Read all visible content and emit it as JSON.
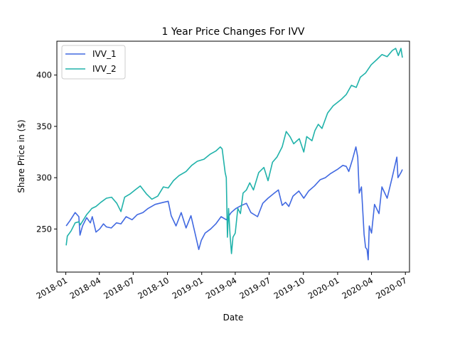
{
  "chart_data": {
    "type": "line",
    "title": "1 Year Price Changes For IVV",
    "xlabel": "Date",
    "ylabel": "Share Price in ($)",
    "xlim": [
      "2017-12-08",
      "2020-07-12"
    ],
    "ylim": [
      208,
      433
    ],
    "x_ticks": [
      "2018-01",
      "2018-04",
      "2018-07",
      "2018-10",
      "2019-01",
      "2019-04",
      "2019-07",
      "2019-10",
      "2020-01",
      "2020-04",
      "2020-07"
    ],
    "y_ticks": [
      250,
      300,
      350,
      400
    ],
    "legend_position": "top-left",
    "grid": false,
    "series": [
      {
        "name": "IVV_1",
        "color": "#4169e1",
        "points": [
          [
            "2018-01-02",
            253
          ],
          [
            "2018-01-12",
            258
          ],
          [
            "2018-01-26",
            266
          ],
          [
            "2018-02-05",
            262
          ],
          [
            "2018-02-08",
            244
          ],
          [
            "2018-02-15",
            253
          ],
          [
            "2018-02-26",
            261
          ],
          [
            "2018-03-08",
            256
          ],
          [
            "2018-03-13",
            262
          ],
          [
            "2018-03-23",
            247
          ],
          [
            "2018-04-02",
            250
          ],
          [
            "2018-04-12",
            255
          ],
          [
            "2018-04-20",
            252
          ],
          [
            "2018-05-03",
            251
          ],
          [
            "2018-05-17",
            256
          ],
          [
            "2018-05-29",
            255
          ],
          [
            "2018-06-12",
            262
          ],
          [
            "2018-06-28",
            259
          ],
          [
            "2018-07-12",
            264
          ],
          [
            "2018-07-27",
            266
          ],
          [
            "2018-08-10",
            270
          ],
          [
            "2018-08-29",
            274
          ],
          [
            "2018-09-20",
            276
          ],
          [
            "2018-10-03",
            277
          ],
          [
            "2018-10-11",
            263
          ],
          [
            "2018-10-24",
            253
          ],
          [
            "2018-11-07",
            266
          ],
          [
            "2018-11-20",
            251
          ],
          [
            "2018-12-03",
            263
          ],
          [
            "2018-12-14",
            246
          ],
          [
            "2018-12-24",
            230
          ],
          [
            "2018-12-31",
            239
          ],
          [
            "2019-01-10",
            246
          ],
          [
            "2019-01-25",
            250
          ],
          [
            "2019-02-08",
            255
          ],
          [
            "2019-02-22",
            262
          ],
          [
            "2019-03-08",
            259
          ],
          [
            "2019-03-21",
            266
          ],
          [
            "2019-04-03",
            270
          ],
          [
            "2019-04-18",
            273
          ],
          [
            "2019-05-01",
            275
          ],
          [
            "2019-05-13",
            266
          ],
          [
            "2019-05-31",
            262
          ],
          [
            "2019-06-14",
            275
          ],
          [
            "2019-06-28",
            280
          ],
          [
            "2019-07-15",
            285
          ],
          [
            "2019-07-26",
            288
          ],
          [
            "2019-08-05",
            273
          ],
          [
            "2019-08-14",
            276
          ],
          [
            "2019-08-23",
            272
          ],
          [
            "2019-09-03",
            282
          ],
          [
            "2019-09-19",
            287
          ],
          [
            "2019-10-02",
            280
          ],
          [
            "2019-10-15",
            287
          ],
          [
            "2019-10-31",
            292
          ],
          [
            "2019-11-15",
            298
          ],
          [
            "2019-11-29",
            300
          ],
          [
            "2019-12-13",
            304
          ],
          [
            "2019-12-31",
            308
          ],
          [
            "2020-01-15",
            312
          ],
          [
            "2020-01-24",
            311
          ],
          [
            "2020-01-31",
            306
          ],
          [
            "2020-02-10",
            318
          ],
          [
            "2020-02-19",
            330
          ],
          [
            "2020-02-24",
            320
          ],
          [
            "2020-02-28",
            285
          ],
          [
            "2020-03-05",
            291
          ],
          [
            "2020-03-09",
            265
          ],
          [
            "2020-03-12",
            245
          ],
          [
            "2020-03-16",
            232
          ],
          [
            "2020-03-20",
            230
          ],
          [
            "2020-03-23",
            220
          ],
          [
            "2020-03-26",
            253
          ],
          [
            "2020-04-01",
            246
          ],
          [
            "2020-04-09",
            274
          ],
          [
            "2020-04-21",
            265
          ],
          [
            "2020-04-29",
            291
          ],
          [
            "2020-05-13",
            280
          ],
          [
            "2020-05-27",
            301
          ],
          [
            "2020-06-08",
            320
          ],
          [
            "2020-06-11",
            300
          ],
          [
            "2020-06-19",
            305
          ],
          [
            "2020-06-23",
            308
          ]
        ]
      },
      {
        "name": "IVV_2",
        "color": "#20b2aa",
        "points": [
          [
            "2018-01-02",
            234
          ],
          [
            "2018-01-05",
            243
          ],
          [
            "2018-01-15",
            248
          ],
          [
            "2018-01-26",
            256
          ],
          [
            "2018-02-05",
            257
          ],
          [
            "2018-02-09",
            254
          ],
          [
            "2018-02-26",
            264
          ],
          [
            "2018-03-12",
            270
          ],
          [
            "2018-03-23",
            272
          ],
          [
            "2018-04-05",
            276
          ],
          [
            "2018-04-20",
            280
          ],
          [
            "2018-05-04",
            281
          ],
          [
            "2018-05-18",
            275
          ],
          [
            "2018-05-29",
            267
          ],
          [
            "2018-06-08",
            281
          ],
          [
            "2018-06-22",
            284
          ],
          [
            "2018-07-06",
            288
          ],
          [
            "2018-07-20",
            292
          ],
          [
            "2018-08-06",
            284
          ],
          [
            "2018-08-20",
            279
          ],
          [
            "2018-09-05",
            282
          ],
          [
            "2018-09-20",
            291
          ],
          [
            "2018-10-03",
            290
          ],
          [
            "2018-10-17",
            297
          ],
          [
            "2018-11-01",
            302
          ],
          [
            "2018-11-20",
            306
          ],
          [
            "2018-12-05",
            312
          ],
          [
            "2018-12-20",
            316
          ],
          [
            "2019-01-07",
            318
          ],
          [
            "2019-01-24",
            323
          ],
          [
            "2019-02-08",
            326
          ],
          [
            "2019-02-20",
            330
          ],
          [
            "2019-02-25",
            328
          ],
          [
            "2019-03-05",
            305
          ],
          [
            "2019-03-08",
            300
          ],
          [
            "2019-03-11",
            242
          ],
          [
            "2019-03-14",
            270
          ],
          [
            "2019-03-18",
            245
          ],
          [
            "2019-03-22",
            226
          ],
          [
            "2019-03-26",
            242
          ],
          [
            "2019-04-01",
            246
          ],
          [
            "2019-04-08",
            270
          ],
          [
            "2019-04-15",
            265
          ],
          [
            "2019-04-22",
            285
          ],
          [
            "2019-05-01",
            288
          ],
          [
            "2019-05-10",
            295
          ],
          [
            "2019-05-20",
            288
          ],
          [
            "2019-06-03",
            305
          ],
          [
            "2019-06-17",
            310
          ],
          [
            "2019-06-28",
            297
          ],
          [
            "2019-07-10",
            315
          ],
          [
            "2019-07-22",
            320
          ],
          [
            "2019-08-05",
            330
          ],
          [
            "2019-08-16",
            345
          ],
          [
            "2019-08-26",
            340
          ],
          [
            "2019-09-05",
            333
          ],
          [
            "2019-09-20",
            338
          ],
          [
            "2019-10-02",
            325
          ],
          [
            "2019-10-10",
            340
          ],
          [
            "2019-10-24",
            336
          ],
          [
            "2019-11-01",
            346
          ],
          [
            "2019-11-10",
            352
          ],
          [
            "2019-11-20",
            348
          ],
          [
            "2019-12-05",
            363
          ],
          [
            "2019-12-20",
            370
          ],
          [
            "2020-01-10",
            376
          ],
          [
            "2020-01-24",
            381
          ],
          [
            "2020-02-07",
            390
          ],
          [
            "2020-02-20",
            388
          ],
          [
            "2020-03-02",
            398
          ],
          [
            "2020-03-16",
            402
          ],
          [
            "2020-03-31",
            410
          ],
          [
            "2020-04-15",
            415
          ],
          [
            "2020-04-29",
            420
          ],
          [
            "2020-05-13",
            418
          ],
          [
            "2020-05-27",
            424
          ],
          [
            "2020-06-05",
            426
          ],
          [
            "2020-06-12",
            419
          ],
          [
            "2020-06-19",
            426
          ],
          [
            "2020-06-23",
            417
          ]
        ]
      }
    ]
  }
}
